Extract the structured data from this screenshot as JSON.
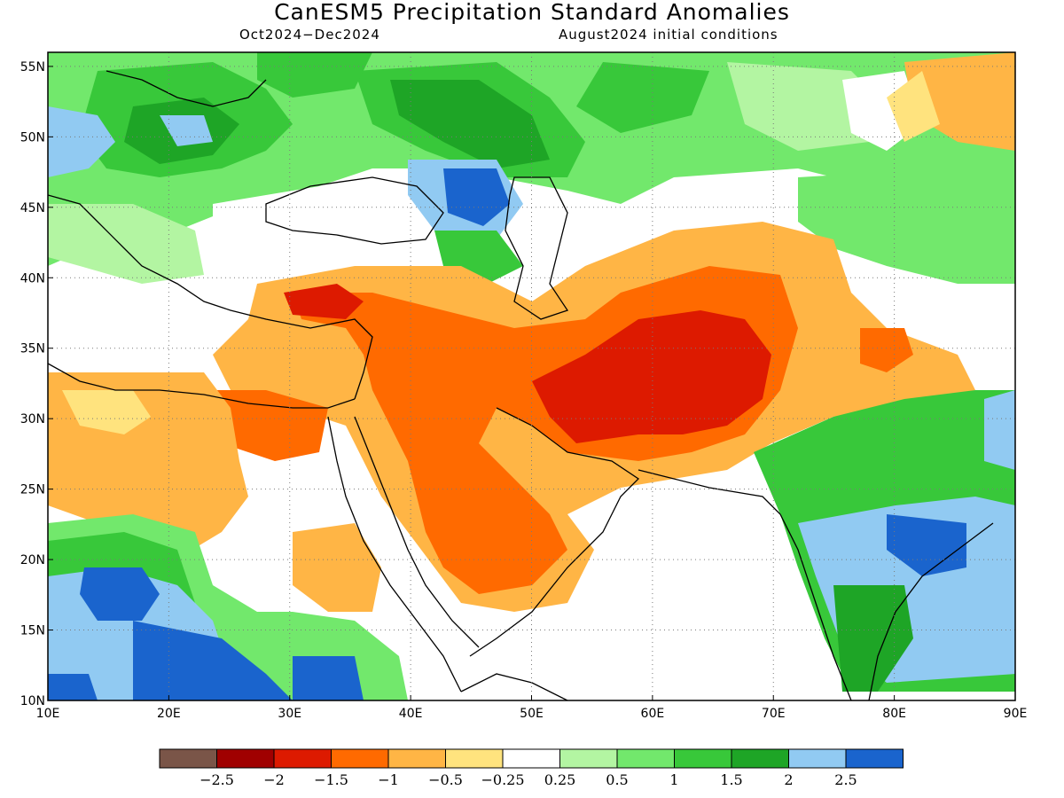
{
  "title": "CanESM5 Precipitation Standard Anomalies",
  "subtitle_left": "Oct2024−Dec2024",
  "subtitle_right": "August2024 initial conditions",
  "map": {
    "lon_range": [
      10,
      90
    ],
    "lat_range": [
      10,
      56
    ],
    "lon_ticks": [
      {
        "value": 10,
        "label": "10E"
      },
      {
        "value": 20,
        "label": "20E"
      },
      {
        "value": 30,
        "label": "30E"
      },
      {
        "value": 40,
        "label": "40E"
      },
      {
        "value": 50,
        "label": "50E"
      },
      {
        "value": 60,
        "label": "60E"
      },
      {
        "value": 70,
        "label": "70E"
      },
      {
        "value": 80,
        "label": "80E"
      },
      {
        "value": 90,
        "label": "90E"
      }
    ],
    "lat_ticks": [
      {
        "value": 10,
        "label": "10N"
      },
      {
        "value": 15,
        "label": "15N"
      },
      {
        "value": 20,
        "label": "20N"
      },
      {
        "value": 25,
        "label": "25N"
      },
      {
        "value": 30,
        "label": "30N"
      },
      {
        "value": 35,
        "label": "35N"
      },
      {
        "value": 40,
        "label": "40N"
      },
      {
        "value": 45,
        "label": "45N"
      },
      {
        "value": 50,
        "label": "50N"
      },
      {
        "value": 55,
        "label": "55N"
      }
    ],
    "grid": true
  },
  "colorbar": {
    "colors": [
      "#7a5548",
      "#a00000",
      "#dd1a00",
      "#ff6a00",
      "#ffb545",
      "#ffe37e",
      "#ffffff",
      "#b3f5a2",
      "#72e86c",
      "#38c83a",
      "#1ea526",
      "#91caf2",
      "#1a64cd"
    ],
    "labels": [
      "−2.5",
      "−2",
      "−1.5",
      "−1",
      "−0.5",
      "−0.25",
      "0.25",
      "0.5",
      "1",
      "1.5",
      "2",
      "2.5"
    ]
  },
  "palette": {
    "brown": "#7a5548",
    "darkred": "#a00000",
    "red": "#dd1a00",
    "orange": "#ff6a00",
    "lightorange": "#ffb545",
    "yellow": "#ffe37e",
    "white": "#ffffff",
    "palegreen": "#b3f5a2",
    "lightgreen": "#72e86c",
    "green": "#38c83a",
    "darkgreen": "#1ea526",
    "lightblue": "#91caf2",
    "blue": "#1a64cd"
  }
}
